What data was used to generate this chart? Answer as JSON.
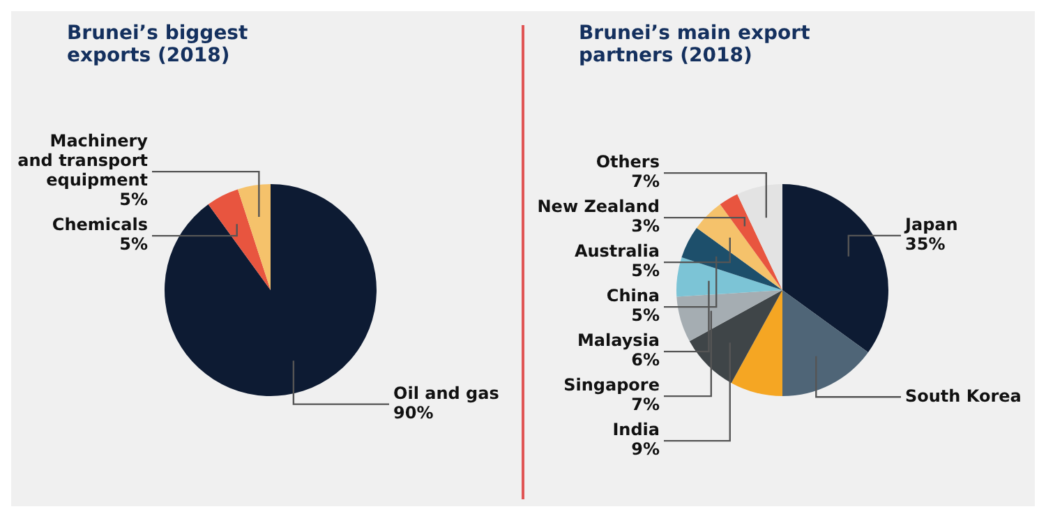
{
  "chart_data": [
    {
      "type": "pie",
      "title": "Brunei’s biggest exports (2018)",
      "categories": [
        "Oil and gas",
        "Chemicals",
        "Machinery and transport equipment"
      ],
      "values": [
        90,
        5,
        5
      ],
      "colors": [
        "#0d1b33",
        "#e8553f",
        "#f5c26b"
      ],
      "value_labels": [
        "90%",
        "5%",
        "5%"
      ]
    },
    {
      "type": "pie",
      "title": "Brunei’s main export partners (2018)",
      "categories": [
        "Japan",
        "South Korea",
        null,
        "India",
        "Singapore",
        "Malaysia",
        "China",
        "Australia",
        "New Zealand",
        "Others"
      ],
      "values": [
        35,
        15,
        8,
        9,
        7,
        6,
        5,
        5,
        3,
        7
      ],
      "colors": [
        "#0d1b33",
        "#4f6577",
        "#f5a623",
        "#3f4548",
        "#a5adb2",
        "#7cc4d6",
        "#1d4f6b",
        "#f5c26b",
        "#e8553f",
        "#e3e3e3"
      ],
      "value_labels": [
        "35%",
        null,
        null,
        "9%",
        "7%",
        "6%",
        "5%",
        "5%",
        "3%",
        "7%"
      ]
    }
  ]
}
